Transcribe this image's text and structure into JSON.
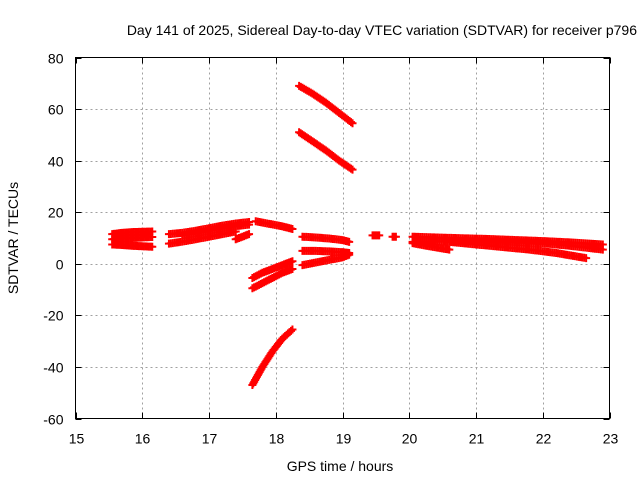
{
  "chart_data": {
    "type": "scatter",
    "title": "Day 141 of 2025, Sidereal Day-to-day VTEC variation (SDTVAR) for receiver p796",
    "xlabel": "GPS time / hours",
    "ylabel": "SDTVAR / TECUs",
    "xlim": [
      15,
      23
    ],
    "ylim": [
      -60,
      80
    ],
    "xticks": [
      15,
      16,
      17,
      18,
      19,
      20,
      21,
      22,
      23
    ],
    "yticks": [
      -60,
      -40,
      -20,
      0,
      20,
      40,
      60,
      80
    ],
    "grid": true,
    "legend": "none",
    "marker": "plus",
    "color": "#ff0000",
    "series": [
      {
        "x": [
          15.55,
          15.7,
          15.85,
          16.0,
          16.15
        ],
        "y": [
          11.5,
          12.0,
          12.3,
          12.4,
          12.5
        ]
      },
      {
        "x": [
          15.55,
          15.7,
          15.85,
          16.0,
          16.15
        ],
        "y": [
          9.5,
          9.8,
          10.0,
          10.2,
          10.4
        ]
      },
      {
        "x": [
          15.55,
          15.7,
          15.85,
          16.0,
          16.15
        ],
        "y": [
          7.5,
          7.3,
          7.0,
          6.8,
          6.6
        ]
      },
      {
        "x": [
          16.4,
          16.6,
          16.8,
          17.0,
          17.2,
          17.4,
          17.6
        ],
        "y": [
          11.5,
          12.0,
          12.8,
          13.8,
          14.8,
          15.6,
          16.2
        ]
      },
      {
        "x": [
          16.4,
          16.6,
          16.8,
          17.0,
          17.2,
          17.4
        ],
        "y": [
          7.8,
          8.6,
          9.5,
          10.5,
          11.5,
          12.5
        ]
      },
      {
        "x": [
          16.6,
          16.8,
          17.0,
          17.2,
          17.4,
          17.6
        ],
        "y": [
          11.0,
          11.8,
          12.8,
          13.8,
          14.6,
          15.2
        ]
      },
      {
        "x": [
          17.4,
          17.5,
          17.6
        ],
        "y": [
          9.5,
          10.5,
          11.5
        ]
      },
      {
        "x": [
          17.7,
          17.9,
          18.1,
          18.25
        ],
        "y": [
          16.5,
          15.5,
          14.5,
          13.5
        ]
      },
      {
        "x": [
          17.65,
          17.8,
          17.95,
          18.1,
          18.25
        ],
        "y": [
          -5.5,
          -3.5,
          -2.0,
          -0.5,
          1.0
        ]
      },
      {
        "x": [
          17.65,
          17.8,
          17.95,
          18.1,
          18.25
        ],
        "y": [
          -9.5,
          -7.5,
          -5.5,
          -3.5,
          -2.0
        ]
      },
      {
        "x": [
          17.65,
          17.8,
          17.95,
          18.1,
          18.25
        ],
        "y": [
          -47,
          -40,
          -34,
          -29,
          -25.5
        ]
      },
      {
        "x": [
          18.35,
          18.55,
          18.75,
          18.95,
          19.15
        ],
        "y": [
          69,
          66,
          62.5,
          58.5,
          54.5
        ]
      },
      {
        "x": [
          18.35,
          18.55,
          18.75,
          18.95,
          19.15
        ],
        "y": [
          51,
          47.5,
          44,
          40,
          36.5
        ]
      },
      {
        "x": [
          18.4,
          18.6,
          18.8,
          19.0,
          19.1
        ],
        "y": [
          10.5,
          10.2,
          9.8,
          9.2,
          8.5
        ]
      },
      {
        "x": [
          18.4,
          18.6,
          18.8,
          19.0,
          19.1
        ],
        "y": [
          5.0,
          5.0,
          4.8,
          4.5,
          4.2
        ]
      },
      {
        "x": [
          18.4,
          18.6,
          18.8,
          19.0,
          19.1
        ],
        "y": [
          -0.5,
          0.5,
          1.5,
          2.5,
          3.5
        ]
      },
      {
        "x": [
          19.45,
          19.55
        ],
        "y": [
          11.0,
          11.0
        ]
      },
      {
        "x": [
          19.75,
          19.8
        ],
        "y": [
          10.5,
          10.5
        ]
      },
      {
        "x": [
          20.05,
          20.4,
          20.8,
          21.2,
          21.6,
          22.0,
          22.4,
          22.9
        ],
        "y": [
          10.5,
          10.2,
          9.9,
          9.6,
          9.2,
          8.8,
          8.3,
          7.5
        ]
      },
      {
        "x": [
          20.05,
          20.4,
          20.8,
          21.2,
          21.6,
          22.0,
          22.4,
          22.9
        ],
        "y": [
          8.5,
          8.6,
          8.7,
          8.7,
          8.5,
          8.0,
          7.0,
          5.5
        ]
      },
      {
        "x": [
          20.05,
          20.3,
          20.6
        ],
        "y": [
          8.0,
          6.8,
          5.5
        ]
      },
      {
        "x": [
          20.6,
          21.0,
          21.4,
          21.8,
          22.2,
          22.65
        ],
        "y": [
          8.5,
          7.5,
          6.5,
          5.5,
          4.2,
          2.2
        ]
      }
    ]
  }
}
